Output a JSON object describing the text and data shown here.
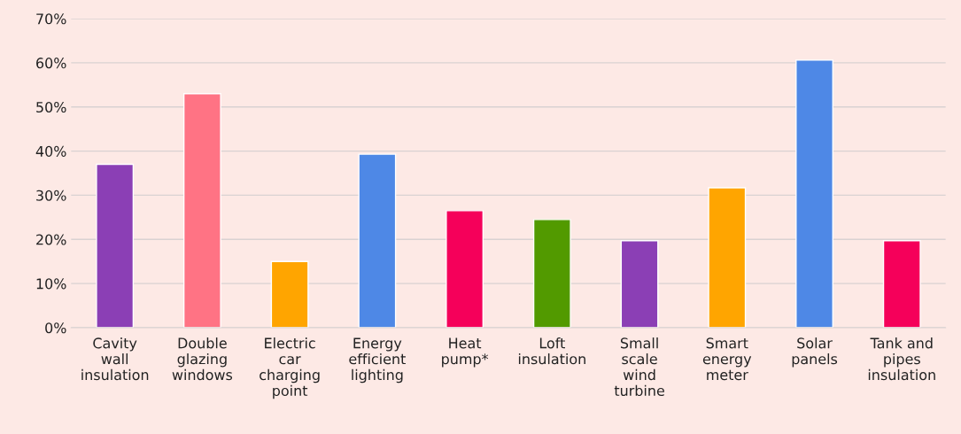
{
  "chart_data": {
    "type": "bar",
    "categories": [
      "Cavity\nwall\ninsulation",
      "Double\nglazing\nwindows",
      "Electric\ncar\ncharging\npoint",
      "Energy\nefficient\nlighting",
      "Heat\npump*",
      "Loft\ninsulation",
      "Small\nscale\nwind\nturbine",
      "Smart\nenergy\nmeter",
      "Solar\npanels",
      "Tank and\npipes\ninsulation"
    ],
    "values": [
      37,
      53,
      15,
      39.3,
      26.5,
      24.5,
      19.7,
      31.7,
      60.6,
      19.7
    ],
    "colors": [
      "#8b3fb5",
      "#ff7384",
      "#ffa500",
      "#4e88e6",
      "#f5005a",
      "#529a00",
      "#8b3fb5",
      "#ffa500",
      "#4e88e6",
      "#f5005a"
    ],
    "ylim": [
      0,
      70
    ],
    "yticks": [
      {
        "value": 0,
        "label": "0%"
      },
      {
        "value": 10,
        "label": "10%"
      },
      {
        "value": 20,
        "label": "20%"
      },
      {
        "value": 30,
        "label": "30%"
      },
      {
        "value": 40,
        "label": "40%"
      },
      {
        "value": 50,
        "label": "50%"
      },
      {
        "value": 60,
        "label": "60%"
      },
      {
        "value": 70,
        "label": "70%"
      }
    ],
    "grid": "y",
    "legend": false
  }
}
